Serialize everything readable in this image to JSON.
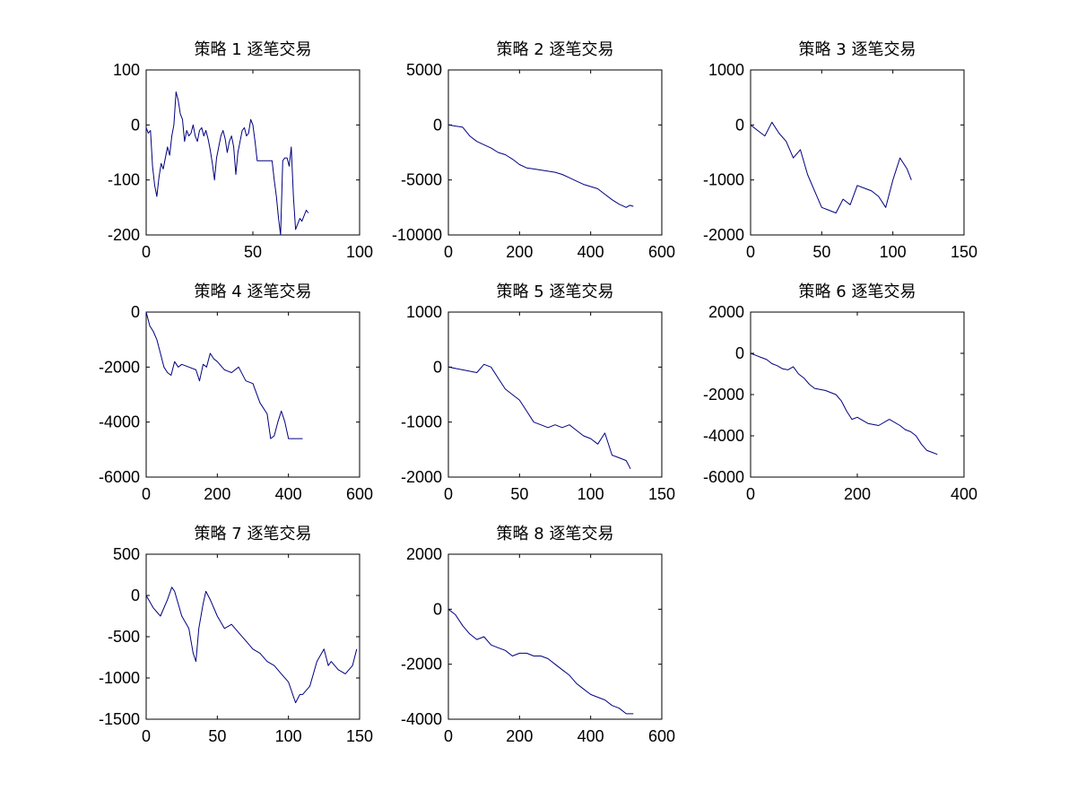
{
  "figure": {
    "background": "#ffffff",
    "line_color": "#00007f"
  },
  "chart_data": [
    {
      "type": "line",
      "title": "策略 1 逐笔交易",
      "xlabel": "",
      "ylabel": "",
      "xlim": [
        0,
        100
      ],
      "ylim": [
        -200,
        100
      ],
      "xticks": [
        0,
        50,
        100
      ],
      "yticks": [
        -200,
        -100,
        0,
        100
      ],
      "xtick_labels": [
        "0",
        "50",
        "100"
      ],
      "ytick_labels": [
        "-200",
        "-100",
        "0",
        "100"
      ],
      "grid": false,
      "series": [
        {
          "x": [
            0,
            1,
            2,
            3,
            4,
            5,
            6,
            7,
            8,
            9,
            10,
            11,
            12,
            13,
            14,
            15,
            16,
            17,
            18,
            19,
            20,
            21,
            22,
            23,
            24,
            25,
            26,
            27,
            28,
            29,
            30,
            31,
            32,
            33,
            34,
            35,
            36,
            37,
            38,
            39,
            40,
            41,
            42,
            43,
            44,
            45,
            46,
            47,
            48,
            49,
            50,
            51,
            52,
            53,
            54,
            55,
            56,
            57,
            58,
            59,
            60,
            61,
            62,
            63,
            64,
            65,
            66,
            67,
            68,
            69,
            70,
            71,
            72,
            73,
            74,
            75,
            76
          ],
          "y": [
            -5,
            -15,
            -10,
            -75,
            -110,
            -130,
            -95,
            -70,
            -80,
            -60,
            -40,
            -55,
            -20,
            0,
            60,
            45,
            20,
            10,
            -30,
            -10,
            -20,
            -15,
            0,
            -20,
            -30,
            -10,
            -5,
            -20,
            -10,
            -25,
            -45,
            -70,
            -100,
            -60,
            -40,
            -20,
            -10,
            -25,
            -50,
            -30,
            -20,
            -40,
            -90,
            -50,
            -30,
            -10,
            -5,
            -20,
            -15,
            10,
            0,
            -30,
            -65,
            -65,
            -65,
            -65,
            -65,
            -65,
            -65,
            -65,
            -100,
            -130,
            -170,
            -200,
            -65,
            -60,
            -60,
            -75,
            -40,
            -130,
            -190,
            -180,
            -170,
            -175,
            -165,
            -155,
            -160
          ]
        }
      ]
    },
    {
      "type": "line",
      "title": "策略 2 逐笔交易",
      "xlabel": "",
      "ylabel": "",
      "xlim": [
        0,
        600
      ],
      "ylim": [
        -10000,
        5000
      ],
      "xticks": [
        0,
        200,
        400,
        600
      ],
      "yticks": [
        -10000,
        -5000,
        0,
        5000
      ],
      "xtick_labels": [
        "0",
        "200",
        "400",
        "600"
      ],
      "ytick_labels": [
        "-10000",
        "-5000",
        "0",
        "5000"
      ],
      "grid": false,
      "series": [
        {
          "x": [
            0,
            20,
            40,
            60,
            80,
            100,
            120,
            140,
            160,
            180,
            200,
            220,
            240,
            260,
            280,
            300,
            320,
            340,
            360,
            380,
            400,
            420,
            440,
            460,
            480,
            500,
            510,
            520
          ],
          "y": [
            0,
            -100,
            -200,
            -1000,
            -1500,
            -1800,
            -2100,
            -2500,
            -2700,
            -3100,
            -3600,
            -3900,
            -4000,
            -4100,
            -4200,
            -4300,
            -4500,
            -4800,
            -5100,
            -5400,
            -5600,
            -5800,
            -6300,
            -6800,
            -7200,
            -7500,
            -7300,
            -7400
          ]
        }
      ]
    },
    {
      "type": "line",
      "title": "策略 3 逐笔交易",
      "xlabel": "",
      "ylabel": "",
      "xlim": [
        0,
        150
      ],
      "ylim": [
        -2000,
        1000
      ],
      "xticks": [
        0,
        50,
        100,
        150
      ],
      "yticks": [
        -2000,
        -1000,
        0,
        1000
      ],
      "xtick_labels": [
        "0",
        "50",
        "100",
        "150"
      ],
      "ytick_labels": [
        "-2000",
        "-1000",
        "0",
        "1000"
      ],
      "grid": false,
      "series": [
        {
          "x": [
            0,
            5,
            10,
            15,
            20,
            25,
            30,
            35,
            40,
            45,
            50,
            55,
            60,
            65,
            70,
            75,
            80,
            85,
            90,
            95,
            100,
            105,
            110,
            113
          ],
          "y": [
            0,
            -100,
            -200,
            50,
            -150,
            -300,
            -600,
            -450,
            -900,
            -1200,
            -1500,
            -1550,
            -1600,
            -1350,
            -1450,
            -1100,
            -1150,
            -1200,
            -1300,
            -1500,
            -1000,
            -600,
            -800,
            -1000
          ]
        }
      ]
    },
    {
      "type": "line",
      "title": "策略 4 逐笔交易",
      "xlabel": "",
      "ylabel": "",
      "xlim": [
        0,
        600
      ],
      "ylim": [
        -6000,
        0
      ],
      "xticks": [
        0,
        200,
        400,
        600
      ],
      "yticks": [
        -6000,
        -4000,
        -2000,
        0
      ],
      "xtick_labels": [
        "0",
        "200",
        "400",
        "600"
      ],
      "ytick_labels": [
        "-6000",
        "-4000",
        "-2000",
        "0"
      ],
      "grid": false,
      "series": [
        {
          "x": [
            0,
            10,
            20,
            30,
            40,
            50,
            60,
            70,
            80,
            90,
            100,
            120,
            140,
            150,
            160,
            170,
            180,
            190,
            200,
            220,
            240,
            260,
            280,
            300,
            320,
            340,
            350,
            360,
            370,
            380,
            390,
            400,
            420,
            440
          ],
          "y": [
            0,
            -500,
            -700,
            -1000,
            -1500,
            -2000,
            -2200,
            -2300,
            -1800,
            -2000,
            -1900,
            -2000,
            -2100,
            -2500,
            -1900,
            -2000,
            -1500,
            -1700,
            -1800,
            -2100,
            -2200,
            -2000,
            -2500,
            -2600,
            -3300,
            -3700,
            -4600,
            -4500,
            -4000,
            -3600,
            -4000,
            -4600,
            -4600,
            -4600
          ]
        }
      ]
    },
    {
      "type": "line",
      "title": "策略 5 逐笔交易",
      "xlabel": "",
      "ylabel": "",
      "xlim": [
        0,
        150
      ],
      "ylim": [
        -2000,
        1000
      ],
      "xticks": [
        0,
        50,
        100,
        150
      ],
      "yticks": [
        -2000,
        -1000,
        0,
        1000
      ],
      "xtick_labels": [
        "0",
        "50",
        "100",
        "150"
      ],
      "ytick_labels": [
        "-2000",
        "-1000",
        "0",
        "1000"
      ],
      "grid": false,
      "series": [
        {
          "x": [
            0,
            10,
            20,
            25,
            30,
            35,
            40,
            45,
            50,
            55,
            60,
            65,
            70,
            75,
            80,
            85,
            90,
            95,
            100,
            105,
            110,
            115,
            120,
            125,
            128
          ],
          "y": [
            0,
            -50,
            -100,
            50,
            0,
            -200,
            -400,
            -500,
            -600,
            -800,
            -1000,
            -1050,
            -1100,
            -1050,
            -1100,
            -1050,
            -1150,
            -1250,
            -1300,
            -1400,
            -1200,
            -1600,
            -1650,
            -1700,
            -1850
          ]
        }
      ]
    },
    {
      "type": "line",
      "title": "策略 6 逐笔交易",
      "xlabel": "",
      "ylabel": "",
      "xlim": [
        0,
        400
      ],
      "ylim": [
        -6000,
        2000
      ],
      "xticks": [
        0,
        200,
        400
      ],
      "yticks": [
        -6000,
        -4000,
        -2000,
        0,
        2000
      ],
      "xtick_labels": [
        "0",
        "200",
        "400"
      ],
      "ytick_labels": [
        "-6000",
        "-4000",
        "-2000",
        "0",
        "2000"
      ],
      "grid": false,
      "series": [
        {
          "x": [
            0,
            10,
            20,
            30,
            40,
            50,
            60,
            70,
            80,
            90,
            100,
            110,
            120,
            140,
            160,
            170,
            180,
            190,
            200,
            220,
            240,
            260,
            280,
            290,
            300,
            310,
            320,
            330,
            340,
            350
          ],
          "y": [
            0,
            -100,
            -200,
            -300,
            -500,
            -600,
            -750,
            -800,
            -650,
            -1000,
            -1200,
            -1500,
            -1700,
            -1800,
            -2000,
            -2300,
            -2800,
            -3200,
            -3100,
            -3400,
            -3500,
            -3200,
            -3500,
            -3700,
            -3800,
            -4000,
            -4400,
            -4700,
            -4800,
            -4900
          ]
        }
      ]
    },
    {
      "type": "line",
      "title": "策略 7 逐笔交易",
      "xlabel": "",
      "ylabel": "",
      "xlim": [
        0,
        150
      ],
      "ylim": [
        -1500,
        500
      ],
      "xticks": [
        0,
        50,
        100,
        150
      ],
      "yticks": [
        -1500,
        -1000,
        -500,
        0,
        500
      ],
      "xtick_labels": [
        "0",
        "50",
        "100",
        "150"
      ],
      "ytick_labels": [
        "-1500",
        "-1000",
        "-500",
        "0",
        "500"
      ],
      "grid": false,
      "series": [
        {
          "x": [
            0,
            5,
            10,
            15,
            18,
            20,
            25,
            30,
            33,
            35,
            37,
            40,
            42,
            45,
            50,
            55,
            60,
            65,
            70,
            75,
            80,
            85,
            90,
            95,
            100,
            105,
            108,
            110,
            115,
            120,
            125,
            128,
            130,
            135,
            140,
            145,
            148
          ],
          "y": [
            0,
            -150,
            -250,
            -50,
            100,
            50,
            -250,
            -400,
            -700,
            -800,
            -400,
            -100,
            50,
            -50,
            -250,
            -400,
            -350,
            -450,
            -550,
            -650,
            -700,
            -800,
            -850,
            -950,
            -1050,
            -1300,
            -1200,
            -1200,
            -1100,
            -800,
            -650,
            -850,
            -800,
            -900,
            -950,
            -850,
            -650
          ]
        }
      ]
    },
    {
      "type": "line",
      "title": "策略 8 逐笔交易",
      "xlabel": "",
      "ylabel": "",
      "xlim": [
        0,
        600
      ],
      "ylim": [
        -4000,
        2000
      ],
      "xticks": [
        0,
        200,
        400,
        600
      ],
      "yticks": [
        -4000,
        -2000,
        0,
        2000
      ],
      "xtick_labels": [
        "0",
        "200",
        "400",
        "600"
      ],
      "ytick_labels": [
        "-4000",
        "-2000",
        "0",
        "2000"
      ],
      "grid": false,
      "series": [
        {
          "x": [
            0,
            20,
            40,
            60,
            80,
            100,
            120,
            140,
            160,
            180,
            200,
            220,
            240,
            260,
            280,
            300,
            320,
            340,
            360,
            380,
            400,
            420,
            440,
            460,
            480,
            500,
            520
          ],
          "y": [
            0,
            -200,
            -600,
            -900,
            -1100,
            -1000,
            -1300,
            -1400,
            -1500,
            -1700,
            -1600,
            -1600,
            -1700,
            -1700,
            -1800,
            -2000,
            -2200,
            -2400,
            -2700,
            -2900,
            -3100,
            -3200,
            -3300,
            -3500,
            -3600,
            -3800,
            -3800
          ]
        }
      ]
    }
  ]
}
